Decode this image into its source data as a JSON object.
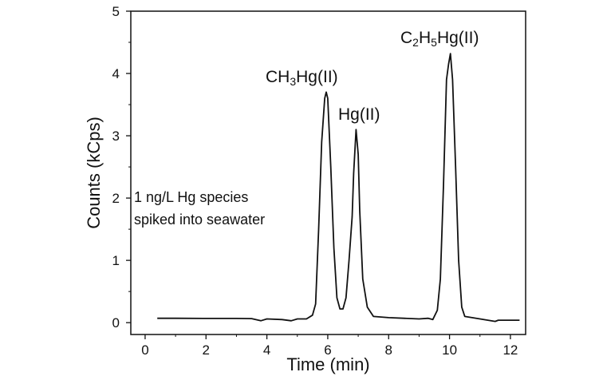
{
  "chart_data": {
    "type": "line",
    "title": "",
    "xlabel": "Time (min)",
    "ylabel": "Counts (kCps)",
    "xlim": [
      -0.47,
      12.5
    ],
    "ylim": [
      -0.19,
      5
    ],
    "xticks": [
      0,
      2,
      4,
      6,
      8,
      10,
      12
    ],
    "yticks": [
      0,
      1,
      2,
      3,
      4,
      5
    ],
    "grid": false,
    "line_color": "#111111",
    "annotations": {
      "note_line1": "1 ng/L Hg species",
      "note_line2": "spiked into seawater",
      "peak1": {
        "main": "CH",
        "sub": "3",
        "rest": "Hg(II)"
      },
      "peak2": "Hg(II)",
      "peak3": {
        "c": "C",
        "sub1": "2",
        "h": "H",
        "sub2": "5",
        "rest": "Hg(II)"
      }
    },
    "series": [
      {
        "points": [
          [
            0.4,
            0.07
          ],
          [
            1,
            0.07
          ],
          [
            2,
            0.068
          ],
          [
            3,
            0.068
          ],
          [
            3.5,
            0.065
          ],
          [
            3.8,
            0.03
          ],
          [
            4,
            0.06
          ],
          [
            4.5,
            0.05
          ],
          [
            4.8,
            0.03
          ],
          [
            5,
            0.06
          ],
          [
            5.3,
            0.06
          ],
          [
            5.5,
            0.12
          ],
          [
            5.6,
            0.3
          ],
          [
            5.7,
            1.5
          ],
          [
            5.8,
            2.9
          ],
          [
            5.9,
            3.6
          ],
          [
            5.95,
            3.7
          ],
          [
            6.0,
            3.6
          ],
          [
            6.1,
            2.5
          ],
          [
            6.2,
            1.2
          ],
          [
            6.3,
            0.4
          ],
          [
            6.4,
            0.22
          ],
          [
            6.5,
            0.22
          ],
          [
            6.6,
            0.4
          ],
          [
            6.7,
            1.0
          ],
          [
            6.8,
            1.7
          ],
          [
            6.85,
            2.4
          ],
          [
            6.93,
            3.1
          ],
          [
            7.0,
            2.7
          ],
          [
            7.05,
            1.8
          ],
          [
            7.15,
            0.7
          ],
          [
            7.3,
            0.25
          ],
          [
            7.5,
            0.1
          ],
          [
            8,
            0.08
          ],
          [
            8.5,
            0.07
          ],
          [
            9,
            0.06
          ],
          [
            9.3,
            0.07
          ],
          [
            9.45,
            0.05
          ],
          [
            9.6,
            0.2
          ],
          [
            9.7,
            0.7
          ],
          [
            9.8,
            2.2
          ],
          [
            9.9,
            3.9
          ],
          [
            9.97,
            4.15
          ],
          [
            10.03,
            4.32
          ],
          [
            10.1,
            3.9
          ],
          [
            10.2,
            2.5
          ],
          [
            10.3,
            1.0
          ],
          [
            10.4,
            0.25
          ],
          [
            10.5,
            0.1
          ],
          [
            11,
            0.06
          ],
          [
            11.5,
            0.02
          ],
          [
            11.6,
            0.04
          ],
          [
            12,
            0.04
          ],
          [
            12.3,
            0.04
          ]
        ]
      }
    ]
  }
}
